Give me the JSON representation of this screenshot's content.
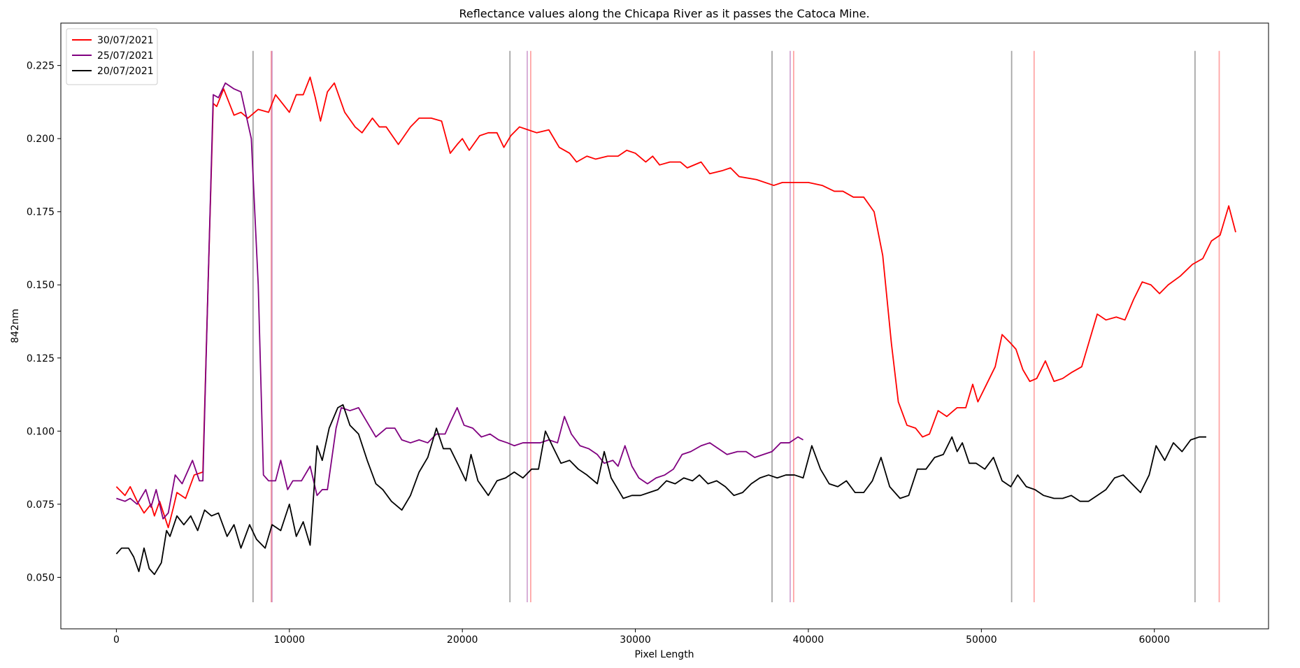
{
  "chart_data": {
    "type": "line",
    "title": "Reflectance values along the Chicapa River as it passes the Catoca Mine.",
    "x_label": "Pixel Length",
    "y_label": "842nm",
    "xlim": [
      -3210,
      66600
    ],
    "ylim": [
      0.0324,
      0.2395
    ],
    "xticks": [
      0,
      10000,
      20000,
      30000,
      40000,
      50000,
      60000
    ],
    "yticks": [
      {
        "value": 0.05,
        "label": "0.050"
      },
      0.075,
      {
        "value": 0.1,
        "label": "0.100"
      },
      0.125,
      {
        "value": 0.15,
        "label": "0.150"
      },
      0.175,
      {
        "value": 0.2,
        "label": "0.200"
      },
      0.225
    ],
    "grid": false,
    "legend": "upper-left",
    "vlines": {
      "ymin": 0.0415,
      "ymax": 0.23,
      "groups": [
        {
          "color": "#808080",
          "alpha": 0.7,
          "x": [
            7900,
            22750,
            37900,
            51750,
            62350
          ]
        },
        {
          "color": "#ff0000",
          "alpha": 0.35,
          "x": [
            8950,
            23950,
            39150,
            53050,
            63750
          ]
        },
        {
          "color": "#800080",
          "alpha": 0.35,
          "x": [
            9000,
            23750,
            38950
          ]
        }
      ]
    },
    "series": [
      {
        "name": "30/07/2021",
        "color": "#ff0000",
        "x": [
          0,
          500,
          800,
          1200,
          1600,
          2000,
          2200,
          2500,
          3000,
          3300,
          3500,
          4000,
          4500,
          5000,
          5300,
          5600,
          5800,
          6200,
          6800,
          7200,
          7600,
          8200,
          8800,
          9200,
          9600,
          10000,
          10400,
          10800,
          11200,
          11500,
          11800,
          12200,
          12600,
          13200,
          13800,
          14200,
          14800,
          15200,
          15600,
          16300,
          17000,
          17500,
          18200,
          18800,
          19300,
          19700,
          20000,
          20400,
          21000,
          21500,
          22000,
          22400,
          22800,
          23300,
          23800,
          24300,
          25000,
          25600,
          26200,
          26600,
          27200,
          27700,
          28400,
          29000,
          29500,
          30000,
          30600,
          31000,
          31400,
          32000,
          32600,
          33000,
          33800,
          34300,
          35000,
          35500,
          36000,
          37000,
          38000,
          38500,
          39000,
          40000,
          40800,
          41500,
          42000,
          42600,
          43200,
          43800,
          44300,
          44800,
          45200,
          45700,
          46200,
          46600,
          47000,
          47500,
          48000,
          48600,
          49100,
          49500,
          49800,
          50300,
          50800,
          51200,
          51700,
          52000,
          52400,
          52800,
          53200,
          53700,
          54200,
          54700,
          55200,
          55800,
          56200,
          56700,
          57200,
          57800,
          58300,
          58800,
          59300,
          59800,
          60300,
          60800,
          61500,
          62200,
          62800,
          63300,
          63800,
          64300,
          64700
        ],
        "values": [
          0.081,
          0.078,
          0.081,
          0.076,
          0.072,
          0.075,
          0.071,
          0.076,
          0.067,
          0.074,
          0.079,
          0.077,
          0.085,
          0.086,
          0.15,
          0.212,
          0.211,
          0.217,
          0.208,
          0.209,
          0.207,
          0.21,
          0.209,
          0.215,
          0.212,
          0.209,
          0.215,
          0.215,
          0.221,
          0.214,
          0.206,
          0.216,
          0.219,
          0.209,
          0.204,
          0.202,
          0.207,
          0.204,
          0.204,
          0.198,
          0.204,
          0.207,
          0.207,
          0.206,
          0.195,
          0.198,
          0.2,
          0.196,
          0.201,
          0.202,
          0.202,
          0.197,
          0.201,
          0.204,
          0.203,
          0.202,
          0.203,
          0.197,
          0.195,
          0.192,
          0.194,
          0.193,
          0.194,
          0.194,
          0.196,
          0.195,
          0.192,
          0.194,
          0.191,
          0.192,
          0.192,
          0.19,
          0.192,
          0.188,
          0.189,
          0.19,
          0.187,
          0.186,
          0.184,
          0.185,
          0.185,
          0.185,
          0.184,
          0.182,
          0.182,
          0.18,
          0.18,
          0.175,
          0.16,
          0.13,
          0.11,
          0.102,
          0.101,
          0.098,
          0.099,
          0.107,
          0.105,
          0.108,
          0.108,
          0.116,
          0.11,
          0.116,
          0.122,
          0.133,
          0.13,
          0.128,
          0.121,
          0.117,
          0.118,
          0.124,
          0.117,
          0.118,
          0.12,
          0.122,
          0.13,
          0.14,
          0.138,
          0.139,
          0.138,
          0.145,
          0.151,
          0.15,
          0.147,
          0.15,
          0.153,
          0.157,
          0.159,
          0.165,
          0.167,
          0.177,
          0.168
        ]
      },
      {
        "name": "25/07/2021",
        "color": "#800080",
        "x": [
          0,
          500,
          800,
          1200,
          1700,
          2000,
          2300,
          2700,
          3000,
          3400,
          3800,
          4400,
          4800,
          5000,
          5300,
          5600,
          5900,
          6300,
          6800,
          7200,
          7800,
          8200,
          8500,
          8800,
          9200,
          9500,
          9900,
          10200,
          10700,
          11200,
          11600,
          11900,
          12200,
          12700,
          13000,
          13500,
          14000,
          14500,
          15000,
          15600,
          16100,
          16500,
          17000,
          17500,
          18000,
          18500,
          19000,
          19300,
          19700,
          20100,
          20600,
          21100,
          21600,
          22100,
          22600,
          23000,
          23500,
          24000,
          24500,
          25000,
          25500,
          25900,
          26300,
          26800,
          27300,
          27800,
          28200,
          28700,
          29000,
          29400,
          29800,
          30200,
          30700,
          31200,
          31700,
          32200,
          32700,
          33200,
          33800,
          34300,
          34800,
          35300,
          35900,
          36400,
          36900,
          37400,
          37900,
          38400,
          38900,
          39400,
          39700
        ],
        "values": [
          0.077,
          0.076,
          0.077,
          0.075,
          0.08,
          0.074,
          0.08,
          0.07,
          0.072,
          0.085,
          0.082,
          0.09,
          0.083,
          0.083,
          0.15,
          0.215,
          0.214,
          0.219,
          0.217,
          0.216,
          0.2,
          0.15,
          0.085,
          0.083,
          0.083,
          0.09,
          0.08,
          0.083,
          0.083,
          0.088,
          0.078,
          0.08,
          0.08,
          0.101,
          0.108,
          0.107,
          0.108,
          0.103,
          0.098,
          0.101,
          0.101,
          0.097,
          0.096,
          0.097,
          0.096,
          0.099,
          0.099,
          0.103,
          0.108,
          0.102,
          0.101,
          0.098,
          0.099,
          0.097,
          0.096,
          0.095,
          0.096,
          0.096,
          0.096,
          0.097,
          0.096,
          0.105,
          0.099,
          0.095,
          0.094,
          0.092,
          0.089,
          0.09,
          0.088,
          0.095,
          0.088,
          0.084,
          0.082,
          0.084,
          0.085,
          0.087,
          0.092,
          0.093,
          0.095,
          0.096,
          0.094,
          0.092,
          0.093,
          0.093,
          0.091,
          0.092,
          0.093,
          0.096,
          0.096,
          0.098,
          0.097
        ]
      },
      {
        "name": "20/07/2021",
        "color": "#000000",
        "x": [
          0,
          300,
          700,
          1000,
          1300,
          1600,
          1900,
          2200,
          2600,
          2900,
          3100,
          3500,
          3900,
          4300,
          4700,
          5100,
          5500,
          5900,
          6400,
          6800,
          7200,
          7700,
          8100,
          8600,
          9000,
          9500,
          10000,
          10400,
          10800,
          11200,
          11600,
          11900,
          12300,
          12800,
          13100,
          13500,
          14000,
          14500,
          15000,
          15400,
          15900,
          16500,
          17000,
          17500,
          18000,
          18500,
          18900,
          19300,
          19800,
          20200,
          20500,
          20900,
          21500,
          22000,
          22500,
          23000,
          23500,
          24000,
          24400,
          24800,
          25200,
          25700,
          26200,
          26700,
          27200,
          27800,
          28200,
          28600,
          29000,
          29300,
          29800,
          30300,
          30800,
          31300,
          31800,
          32300,
          32800,
          33300,
          33700,
          34200,
          34700,
          35200,
          35700,
          36200,
          36700,
          37200,
          37700,
          38200,
          38700,
          39200,
          39700,
          40200,
          40700,
          41200,
          41700,
          42200,
          42700,
          43200,
          43700,
          44200,
          44700,
          45300,
          45800,
          46300,
          46800,
          47300,
          47800,
          48300,
          48600,
          48900,
          49300,
          49700,
          50200,
          50700,
          51200,
          51700,
          52100,
          52600,
          53100,
          53600,
          54200,
          54700,
          55200,
          55700,
          56200,
          56700,
          57200,
          57700,
          58200,
          58700,
          59200,
          59700,
          60100,
          60600,
          61100,
          61600,
          62100,
          62600,
          63000
        ],
        "values": [
          0.058,
          0.06,
          0.06,
          0.057,
          0.052,
          0.06,
          0.053,
          0.051,
          0.055,
          0.066,
          0.064,
          0.071,
          0.068,
          0.071,
          0.066,
          0.073,
          0.071,
          0.072,
          0.064,
          0.068,
          0.06,
          0.068,
          0.063,
          0.06,
          0.068,
          0.066,
          0.075,
          0.064,
          0.069,
          0.061,
          0.095,
          0.09,
          0.101,
          0.108,
          0.109,
          0.102,
          0.099,
          0.09,
          0.082,
          0.08,
          0.076,
          0.073,
          0.078,
          0.086,
          0.091,
          0.101,
          0.094,
          0.094,
          0.088,
          0.083,
          0.092,
          0.083,
          0.078,
          0.083,
          0.084,
          0.086,
          0.084,
          0.087,
          0.087,
          0.1,
          0.095,
          0.089,
          0.09,
          0.087,
          0.085,
          0.082,
          0.093,
          0.084,
          0.08,
          0.077,
          0.078,
          0.078,
          0.079,
          0.08,
          0.083,
          0.082,
          0.084,
          0.083,
          0.085,
          0.082,
          0.083,
          0.081,
          0.078,
          0.079,
          0.082,
          0.084,
          0.085,
          0.084,
          0.085,
          0.085,
          0.084,
          0.095,
          0.087,
          0.082,
          0.081,
          0.083,
          0.079,
          0.079,
          0.083,
          0.091,
          0.081,
          0.077,
          0.078,
          0.087,
          0.087,
          0.091,
          0.092,
          0.098,
          0.093,
          0.096,
          0.089,
          0.089,
          0.087,
          0.091,
          0.083,
          0.081,
          0.085,
          0.081,
          0.08,
          0.078,
          0.077,
          0.077,
          0.078,
          0.076,
          0.076,
          0.078,
          0.08,
          0.084,
          0.085,
          0.082,
          0.079,
          0.085,
          0.095,
          0.09,
          0.096,
          0.093,
          0.097,
          0.098,
          0.098
        ]
      }
    ]
  }
}
